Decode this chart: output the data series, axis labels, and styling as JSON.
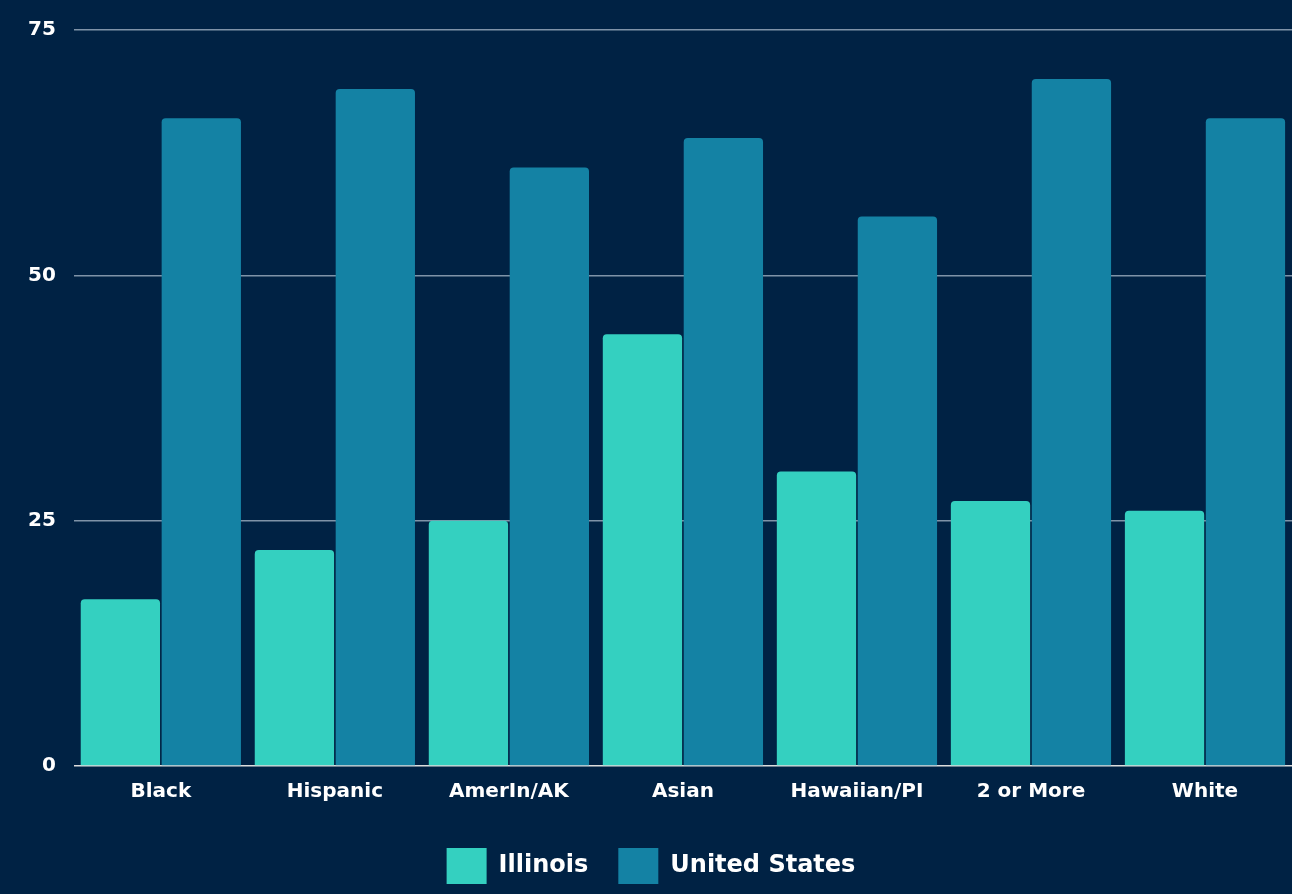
{
  "chart_data": {
    "type": "bar",
    "categories": [
      "Black",
      "Hispanic",
      "AmerIn/AK",
      "Asian",
      "Hawaiian/PI",
      "2 or More",
      "White"
    ],
    "series": [
      {
        "name": "Illinois",
        "color": "#34d0c0",
        "values": [
          17,
          22,
          25,
          44,
          30,
          27,
          26
        ]
      },
      {
        "name": "United States",
        "color": "#1482a4",
        "values": [
          66,
          69,
          61,
          64,
          56,
          70,
          66
        ]
      }
    ],
    "ylim": [
      0,
      75
    ],
    "yticks": [
      0,
      25,
      50,
      75
    ],
    "grid": "y",
    "legend": "bottom"
  }
}
